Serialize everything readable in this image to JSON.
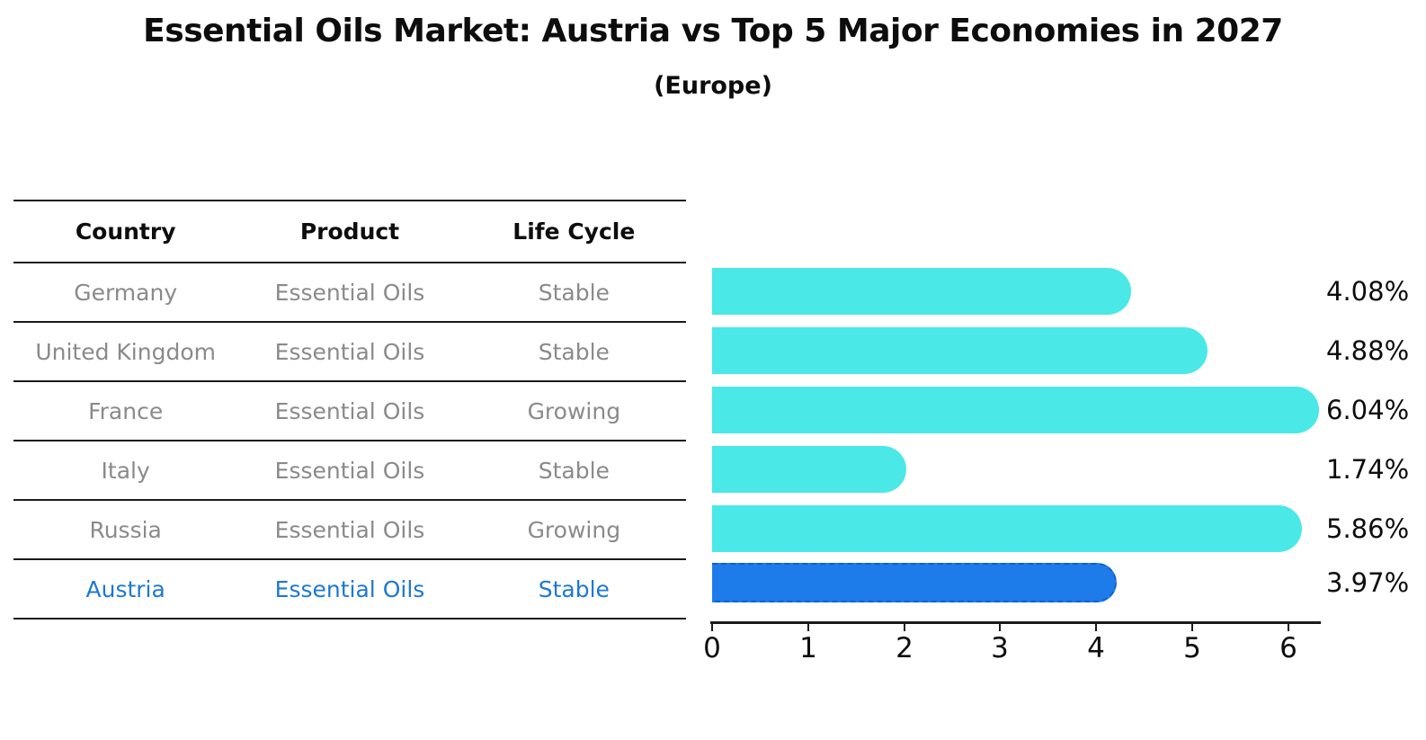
{
  "title": "Essential Oils Market: Austria vs Top 5 Major Economies in 2027",
  "subtitle": "(Europe)",
  "table": {
    "headers": [
      "Country",
      "Product",
      "Life Cycle"
    ],
    "rows": [
      {
        "country": "Germany",
        "product": "Essential Oils",
        "life_cycle": "Stable",
        "highlighted": false
      },
      {
        "country": "United Kingdom",
        "product": "Essential Oils",
        "life_cycle": "Stable",
        "highlighted": false
      },
      {
        "country": "France",
        "product": "Essential Oils",
        "life_cycle": "Growing",
        "highlighted": false
      },
      {
        "country": "Italy",
        "product": "Essential Oils",
        "life_cycle": "Stable",
        "highlighted": false
      },
      {
        "country": "Russia",
        "product": "Essential Oils",
        "life_cycle": "Growing",
        "highlighted": false
      },
      {
        "country": "Austria",
        "product": "Essential Oils",
        "life_cycle": "Stable",
        "highlighted": true
      }
    ]
  },
  "chart_data": {
    "type": "bar",
    "orientation": "horizontal",
    "categories": [
      "Germany",
      "United Kingdom",
      "France",
      "Italy",
      "Russia",
      "Austria"
    ],
    "values": [
      4.08,
      4.88,
      6.04,
      1.74,
      5.86,
      3.97
    ],
    "labels": [
      "4.08%",
      "4.88%",
      "6.04%",
      "1.74%",
      "5.86%",
      "3.97%"
    ],
    "xticks": [
      "0",
      "1",
      "2",
      "3",
      "4",
      "5",
      "6"
    ],
    "xlim": [
      0,
      6.35
    ],
    "grid": false,
    "legend": "none",
    "highlight_index": 5,
    "bar_color": "#4ae8e6",
    "highlight_bar_color": "#1e7cea",
    "highlight_border_color": "#0e5fd0",
    "highlight_text_color": "#1e78d2"
  }
}
